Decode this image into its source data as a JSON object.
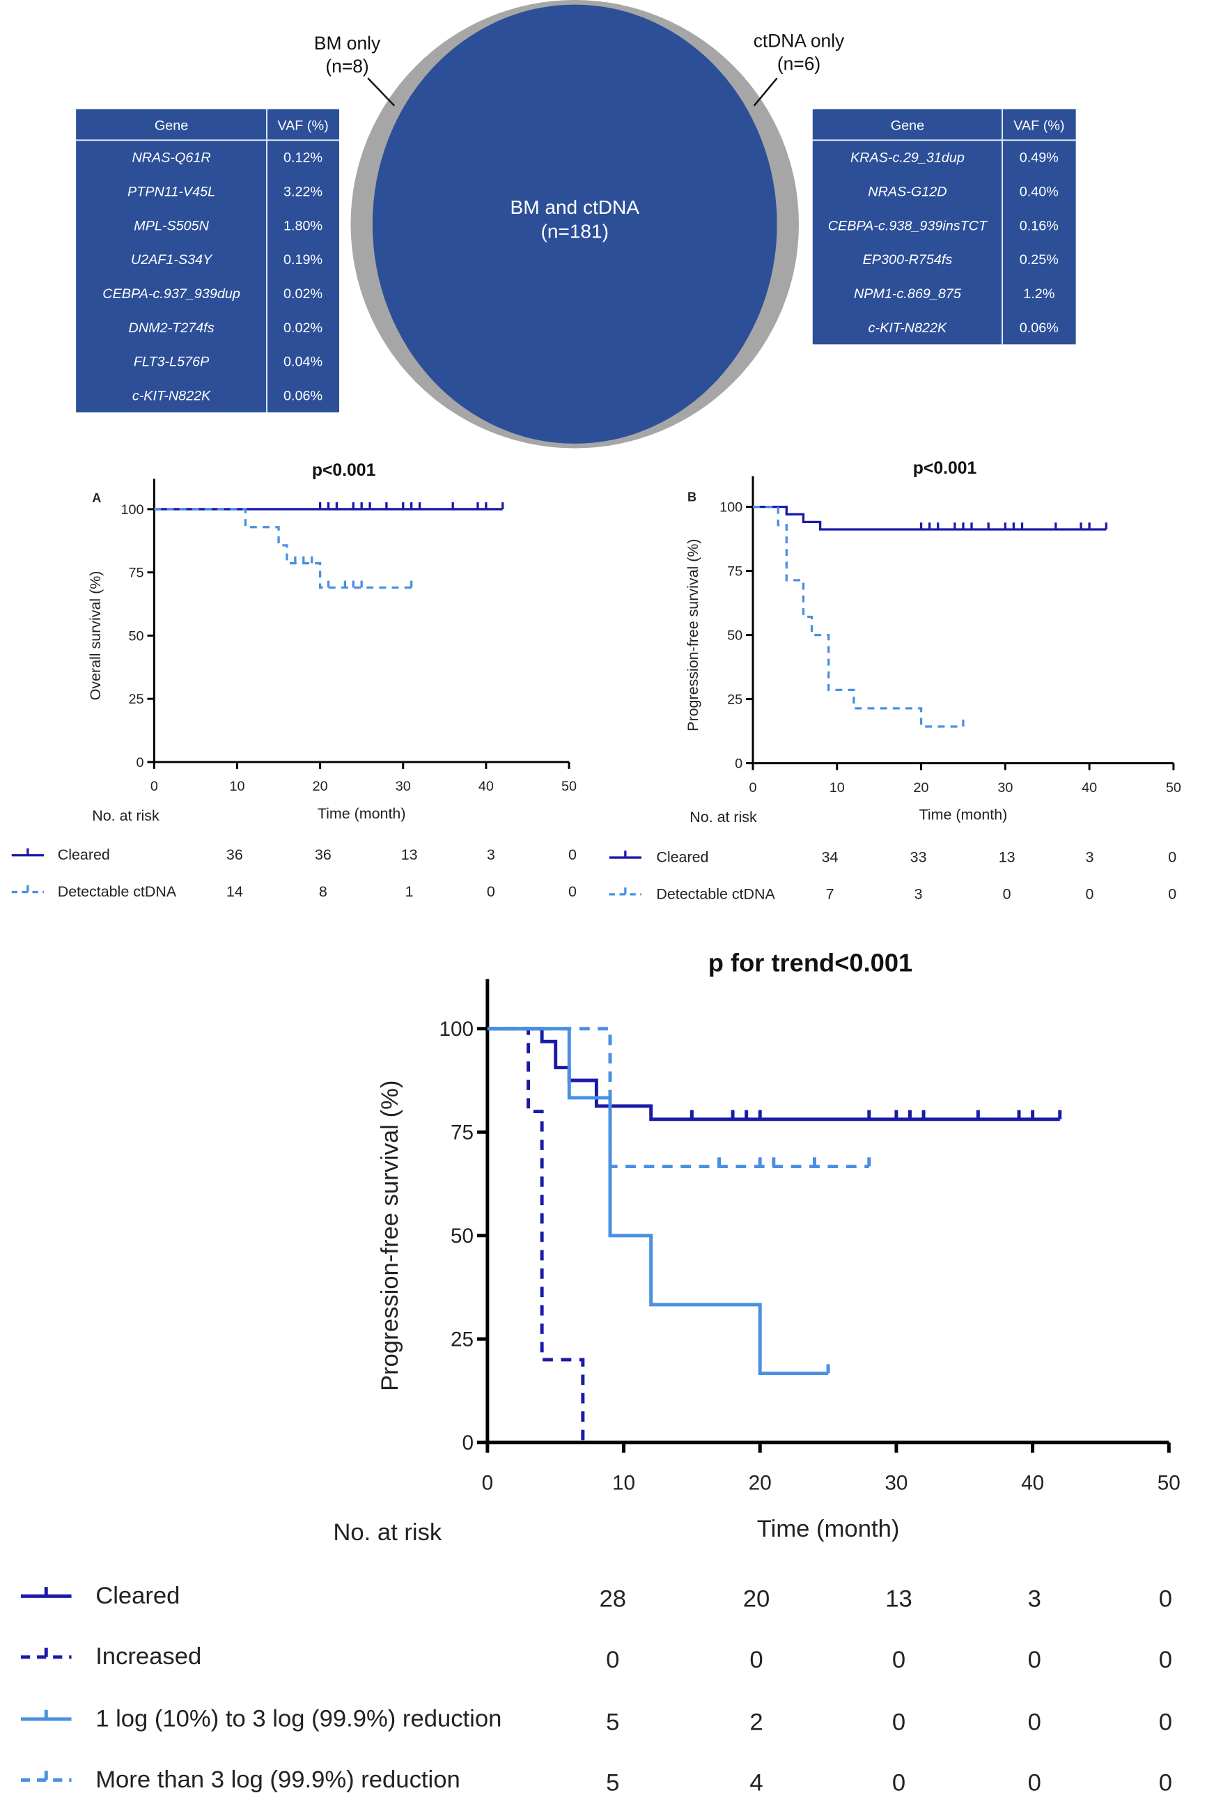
{
  "venn": {
    "left_label": "BM only",
    "left_n": "(n=8)",
    "right_label": "ctDNA only",
    "right_n": "(n=6)",
    "center_label": "BM and ctDNA",
    "center_n": "(n=181)",
    "colors": {
      "shared": "#2c4f98",
      "outer": "#a6a6a6"
    }
  },
  "tables": {
    "left": {
      "headers": [
        "Gene",
        "VAF (%)"
      ],
      "rows": [
        [
          "NRAS-Q61R",
          "0.12%"
        ],
        [
          "PTPN11-V45L",
          "3.22%"
        ],
        [
          "MPL-S505N",
          "1.80%"
        ],
        [
          "U2AF1-S34Y",
          "0.19%"
        ],
        [
          "CEBPA-c.937_939dup",
          "0.02%"
        ],
        [
          "DNM2-T274fs",
          "0.02%"
        ],
        [
          "FLT3-L576P",
          "0.04%"
        ],
        [
          "c-KIT-N822K",
          "0.06%"
        ]
      ]
    },
    "right": {
      "headers": [
        "Gene",
        "VAF (%)"
      ],
      "rows": [
        [
          "KRAS-c.29_31dup",
          "0.49%"
        ],
        [
          "NRAS-G12D",
          "0.40%"
        ],
        [
          "CEBPA-c.938_939insTCT",
          "0.16%"
        ],
        [
          "EP300-R754fs",
          "0.25%"
        ],
        [
          "NPM1-c.869_875",
          "1.2%"
        ],
        [
          "c-KIT-N822K",
          "0.06%"
        ]
      ]
    }
  },
  "chart_data": [
    {
      "type": "line",
      "style": "kaplan-meier step",
      "panel": "A",
      "title": "p<0.001",
      "xlabel": "Time (month)",
      "ylabel": "Overall survival (%)",
      "xlim": [
        0,
        50
      ],
      "ylim": [
        0,
        100
      ],
      "xticks": [
        0,
        10,
        20,
        30,
        40,
        50
      ],
      "yticks": [
        0,
        25,
        50,
        75,
        100
      ],
      "risk_header": "No. at risk",
      "risk_times": [
        10,
        20,
        30,
        40,
        50
      ],
      "series": [
        {
          "name": "Cleared",
          "color": "#1a1aa8",
          "dashed": false,
          "steps": [
            [
              0,
              100
            ]
          ],
          "end": 42,
          "censored": [
            20,
            21,
            22,
            24,
            25,
            26,
            28,
            30,
            31,
            32,
            36,
            39,
            40,
            42
          ],
          "at_risk": [
            36,
            36,
            13,
            3,
            0
          ]
        },
        {
          "name": "Detectable ctDNA",
          "color": "#4a90e2",
          "dashed": true,
          "steps": [
            [
              0,
              100
            ],
            [
              11,
              92.9
            ],
            [
              15,
              85.7
            ],
            [
              16,
              78.6
            ],
            [
              20,
              69.0
            ]
          ],
          "end": 31,
          "censored": [
            17,
            18,
            19,
            21,
            23,
            24,
            25,
            31
          ],
          "at_risk": [
            14,
            8,
            1,
            0,
            0
          ]
        }
      ]
    },
    {
      "type": "line",
      "style": "kaplan-meier step",
      "panel": "B",
      "title": "p<0.001",
      "xlabel": "Time (month)",
      "ylabel": "Progression-free survival (%)",
      "xlim": [
        0,
        50
      ],
      "ylim": [
        0,
        100
      ],
      "xticks": [
        0,
        10,
        20,
        30,
        40,
        50
      ],
      "yticks": [
        0,
        25,
        50,
        75,
        100
      ],
      "risk_header": "No. at risk",
      "risk_times": [
        10,
        20,
        30,
        40,
        50
      ],
      "series": [
        {
          "name": "Cleared",
          "color": "#1a1aa8",
          "dashed": false,
          "steps": [
            [
              0,
              100
            ],
            [
              4,
              97.1
            ],
            [
              6,
              94.1
            ],
            [
              8,
              91.2
            ]
          ],
          "end": 42,
          "censored": [
            20,
            21,
            22,
            24,
            25,
            26,
            28,
            30,
            31,
            32,
            36,
            39,
            40,
            42
          ],
          "at_risk": [
            34,
            33,
            13,
            3,
            0
          ]
        },
        {
          "name": "Detectable ctDNA",
          "color": "#4a90e2",
          "dashed": true,
          "steps": [
            [
              0,
              100
            ],
            [
              3,
              92.9
            ],
            [
              4,
              71.4
            ],
            [
              6,
              57.1
            ],
            [
              7,
              50.0
            ],
            [
              9,
              28.6
            ],
            [
              12,
              21.4
            ],
            [
              20,
              14.3
            ]
          ],
          "end": 25,
          "censored": [
            25
          ],
          "at_risk": [
            7,
            3,
            0,
            0,
            0
          ]
        }
      ]
    },
    {
      "type": "line",
      "style": "kaplan-meier step",
      "panel": "",
      "title": "p for trend<0.001",
      "xlabel": "Time (month)",
      "ylabel": "Progression-free survival (%)",
      "xlim": [
        0,
        50
      ],
      "ylim": [
        0,
        100
      ],
      "xticks": [
        0,
        10,
        20,
        30,
        40,
        50
      ],
      "yticks": [
        0,
        25,
        50,
        75,
        100
      ],
      "risk_header": "No. at risk",
      "risk_times": [
        10,
        20,
        30,
        40,
        50
      ],
      "series": [
        {
          "name": "Cleared",
          "color": "#1a1aa8",
          "dashed": false,
          "steps": [
            [
              0,
              100
            ],
            [
              4,
              96.9
            ],
            [
              5,
              90.6
            ],
            [
              6,
              87.5
            ],
            [
              8,
              81.3
            ],
            [
              12,
              78.1
            ]
          ],
          "end": 42,
          "censored": [
            15,
            18,
            19,
            20,
            28,
            30,
            31,
            32,
            36,
            39,
            40,
            42
          ],
          "at_risk": [
            28,
            20,
            13,
            3,
            0
          ]
        },
        {
          "name": "Increased",
          "color": "#1a1aa8",
          "dashed": true,
          "steps": [
            [
              0,
              100
            ],
            [
              3,
              80
            ],
            [
              4,
              20
            ],
            [
              7,
              0
            ]
          ],
          "end": 7,
          "censored": [],
          "at_risk": [
            0,
            0,
            0,
            0,
            0
          ]
        },
        {
          "name": "1 log (10%) to 3 log (99.9%) reduction",
          "color": "#4a90e2",
          "dashed": false,
          "steps": [
            [
              0,
              100
            ],
            [
              6,
              83.3
            ],
            [
              9,
              50
            ],
            [
              12,
              33.3
            ],
            [
              20,
              16.7
            ]
          ],
          "end": 25,
          "censored": [
            25
          ],
          "at_risk": [
            5,
            2,
            0,
            0,
            0
          ]
        },
        {
          "name": "More than 3 log (99.9%) reduction",
          "color": "#4a90e2",
          "dashed": true,
          "steps": [
            [
              0,
              100
            ],
            [
              9,
              66.7
            ]
          ],
          "end": 28,
          "censored": [
            17,
            20,
            21,
            24,
            28
          ],
          "at_risk": [
            5,
            4,
            0,
            0,
            0
          ]
        }
      ]
    }
  ]
}
